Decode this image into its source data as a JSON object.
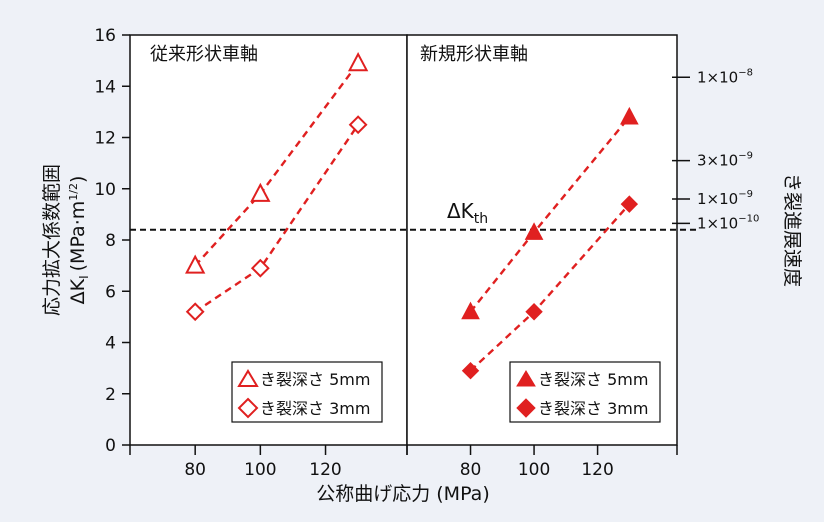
{
  "chart_data": {
    "type": "line",
    "ylabel_line1": "応力拡大係数範囲",
    "ylabel_line2": "ΔK",
    "ylabel_sub": "I",
    "ylabel_unit": "(MPa·m",
    "ylabel_unit_sup": "1/2",
    "ylabel_unit_close": ")",
    "xlabel": "公称曲げ応力 (MPa)",
    "right_axis_label": "き裂進展速度",
    "ylim": [
      0,
      16
    ],
    "y_ticks": [
      "0",
      "2",
      "4",
      "6",
      "8",
      "10",
      "12",
      "14",
      "16"
    ],
    "x_ticks": [
      "80",
      "100",
      "120"
    ],
    "threshold": {
      "label": "ΔK",
      "label_sub": "th",
      "value": 8.4,
      "line_style": "dashed",
      "color": "#111111"
    },
    "right_ticks": [
      {
        "label": "1×10",
        "sup": "−8",
        "y": 14.35
      },
      {
        "label": "3×10",
        "sup": "−9",
        "y": 11.1
      },
      {
        "label": "1×10",
        "sup": "−9",
        "y": 9.6
      },
      {
        "label": "1×10",
        "sup": "−10",
        "y": 8.65
      }
    ],
    "series_color": "#e02020",
    "panels": [
      {
        "title": "従来形状車軸",
        "xlim": [
          60,
          145
        ],
        "series": [
          {
            "name": "き裂深さ 5mm",
            "marker": "triangle",
            "filled": false,
            "x": [
              80,
              100,
              130
            ],
            "y": [
              7.0,
              9.8,
              14.9
            ]
          },
          {
            "name": "き裂深さ 3mm",
            "marker": "diamond",
            "filled": false,
            "x": [
              80,
              100,
              130
            ],
            "y": [
              5.2,
              6.9,
              12.5
            ]
          }
        ]
      },
      {
        "title": "新規形状車軸",
        "xlim": [
          60,
          145
        ],
        "series": [
          {
            "name": "き裂深さ 5mm",
            "marker": "triangle",
            "filled": true,
            "x": [
              80,
              100,
              130
            ],
            "y": [
              5.2,
              8.3,
              12.8
            ]
          },
          {
            "name": "き裂深さ 3mm",
            "marker": "diamond",
            "filled": true,
            "x": [
              80,
              100,
              130
            ],
            "y": [
              2.9,
              5.2,
              9.4
            ]
          }
        ]
      }
    ]
  }
}
